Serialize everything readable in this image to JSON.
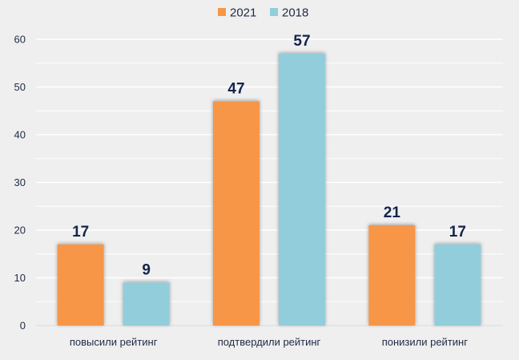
{
  "chart_data": {
    "type": "bar",
    "categories": [
      "повысили рейтинг",
      "подтвердили рейтинг",
      "понизили рейтинг"
    ],
    "series": [
      {
        "name": "2021",
        "values": [
          17,
          47,
          21
        ],
        "color": "#f79646"
      },
      {
        "name": "2018",
        "values": [
          9,
          57,
          17
        ],
        "color": "#92cddc"
      }
    ],
    "ylim": [
      0,
      60
    ],
    "yticks": [
      0,
      10,
      20,
      30,
      40,
      50,
      60
    ],
    "grid": true,
    "minor_grid": true,
    "data_labels": true,
    "legend_position": "top-center",
    "background": "#efefef",
    "grid_color": "#ffffff"
  }
}
